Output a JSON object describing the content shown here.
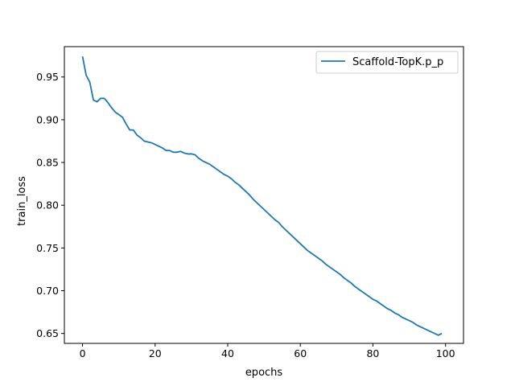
{
  "chart_data": {
    "type": "line",
    "title": "",
    "xlabel": "epochs",
    "ylabel": "train_loss",
    "xlim": [
      -5,
      104.95
    ],
    "ylim": [
      0.6384,
      0.9855
    ],
    "xticks": [
      0,
      20,
      40,
      60,
      80,
      100
    ],
    "yticks": [
      0.65,
      0.7,
      0.75,
      0.8,
      0.85,
      0.9,
      0.95
    ],
    "xtick_labels": [
      "0",
      "20",
      "40",
      "60",
      "80",
      "100"
    ],
    "ytick_labels": [
      "0.65",
      "0.70",
      "0.75",
      "0.80",
      "0.85",
      "0.90",
      "0.95"
    ],
    "grid": false,
    "legend_position": "top-right",
    "series": [
      {
        "name": "Scaffold-TopK.p_p",
        "color": "#1f77b4",
        "x": [
          0,
          1,
          2,
          3,
          4,
          5,
          6,
          7,
          8,
          9,
          10,
          11,
          12,
          13,
          14,
          15,
          16,
          17,
          18,
          19,
          20,
          21,
          22,
          23,
          24,
          25,
          26,
          27,
          28,
          29,
          30,
          31,
          32,
          33,
          34,
          35,
          36,
          37,
          38,
          39,
          40,
          41,
          42,
          43,
          44,
          45,
          46,
          47,
          48,
          49,
          50,
          51,
          52,
          53,
          54,
          55,
          56,
          57,
          58,
          59,
          60,
          61,
          62,
          63,
          64,
          65,
          66,
          67,
          68,
          69,
          70,
          71,
          72,
          73,
          74,
          75,
          76,
          77,
          78,
          79,
          80,
          81,
          82,
          83,
          84,
          85,
          86,
          87,
          88,
          89,
          90,
          91,
          92,
          93,
          94,
          95,
          96,
          97,
          98,
          99
        ],
        "values": [
          0.974,
          0.952,
          0.944,
          0.923,
          0.921,
          0.925,
          0.925,
          0.92,
          0.914,
          0.909,
          0.906,
          0.903,
          0.895,
          0.888,
          0.888,
          0.882,
          0.879,
          0.875,
          0.874,
          0.873,
          0.871,
          0.869,
          0.867,
          0.864,
          0.864,
          0.862,
          0.862,
          0.863,
          0.861,
          0.86,
          0.86,
          0.859,
          0.855,
          0.852,
          0.85,
          0.848,
          0.845,
          0.842,
          0.839,
          0.836,
          0.834,
          0.831,
          0.827,
          0.824,
          0.82,
          0.816,
          0.812,
          0.807,
          0.803,
          0.799,
          0.795,
          0.791,
          0.787,
          0.783,
          0.78,
          0.775,
          0.771,
          0.767,
          0.763,
          0.759,
          0.755,
          0.751,
          0.747,
          0.744,
          0.741,
          0.738,
          0.735,
          0.731,
          0.728,
          0.725,
          0.722,
          0.719,
          0.715,
          0.712,
          0.709,
          0.705,
          0.702,
          0.699,
          0.696,
          0.693,
          0.69,
          0.688,
          0.685,
          0.682,
          0.679,
          0.677,
          0.674,
          0.672,
          0.669,
          0.667,
          0.665,
          0.663,
          0.66,
          0.658,
          0.656,
          0.654,
          0.652,
          0.65,
          0.648,
          0.65
        ]
      }
    ]
  }
}
